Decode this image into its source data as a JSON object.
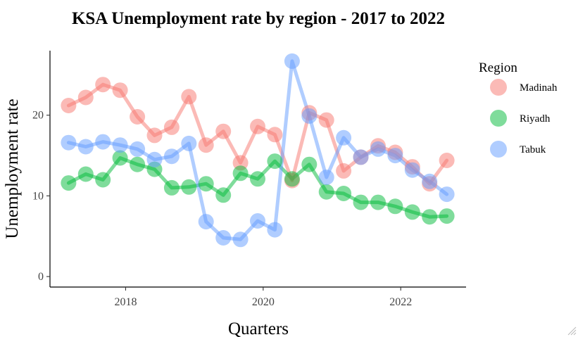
{
  "chart_data": {
    "type": "line",
    "title": "KSA Unemployment rate by region - 2017 to 2022",
    "xlabel": "Quarters",
    "ylabel": "Unemployment rate",
    "xlim": [
      2016.9,
      2022.95
    ],
    "ylim": [
      -1.3,
      28.0
    ],
    "x_ticks": [
      {
        "value": 2018,
        "label": "2018"
      },
      {
        "value": 2020,
        "label": "2020"
      },
      {
        "value": 2022,
        "label": "2022"
      }
    ],
    "y_ticks": [
      {
        "value": 0,
        "label": "0"
      },
      {
        "value": 10,
        "label": "10"
      },
      {
        "value": 20,
        "label": "20"
      }
    ],
    "x": [
      2017.17,
      2017.42,
      2017.67,
      2017.92,
      2018.17,
      2018.42,
      2018.67,
      2018.92,
      2019.17,
      2019.42,
      2019.67,
      2019.92,
      2020.17,
      2020.42,
      2020.67,
      2020.92,
      2021.17,
      2021.42,
      2021.67,
      2021.92,
      2022.17,
      2022.42,
      2022.67
    ],
    "series": [
      {
        "name": "Madinah",
        "color": "#F8766D",
        "values": [
          21.2,
          22.2,
          23.8,
          23.1,
          19.8,
          17.5,
          18.5,
          22.3,
          16.3,
          18.0,
          14.1,
          18.6,
          17.6,
          11.9,
          20.3,
          19.4,
          13.1,
          14.8,
          16.2,
          15.4,
          13.6,
          11.5,
          14.4
        ]
      },
      {
        "name": "Riyadh",
        "color": "#00BA38",
        "values": [
          11.6,
          12.7,
          12.0,
          14.7,
          13.9,
          13.3,
          11.0,
          11.1,
          11.5,
          10.1,
          12.8,
          12.1,
          14.3,
          12.1,
          13.9,
          10.5,
          10.3,
          9.2,
          9.2,
          8.7,
          8.0,
          7.4,
          7.5
        ]
      },
      {
        "name": "Tabuk",
        "color": "#619CFF",
        "values": [
          16.6,
          16.1,
          16.7,
          16.3,
          15.8,
          14.5,
          14.9,
          16.5,
          6.8,
          4.8,
          4.6,
          6.9,
          5.8,
          26.7,
          19.9,
          12.3,
          17.2,
          14.8,
          15.8,
          15.0,
          13.2,
          11.8,
          10.2
        ]
      }
    ],
    "legend": {
      "title": "Region",
      "position": "right"
    },
    "grid": false
  }
}
